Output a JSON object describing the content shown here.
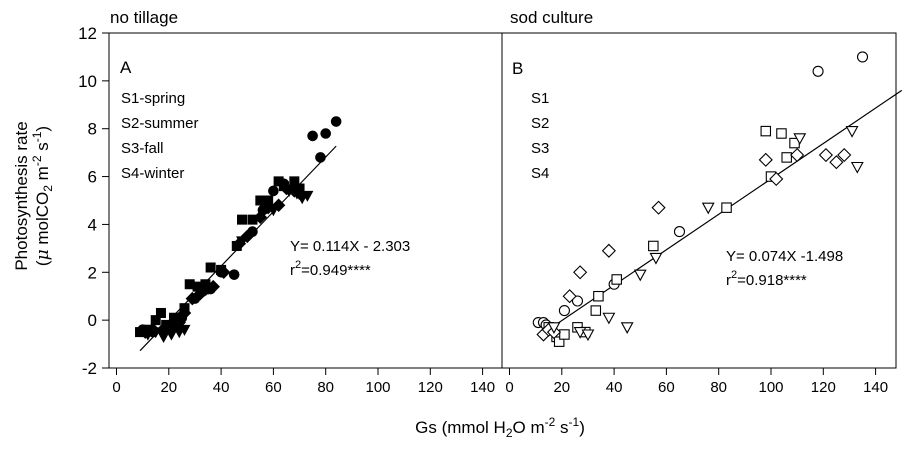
{
  "y_axis": {
    "label_line1": "Photosynthesis rate",
    "label_line2_prefix": "(",
    "label_mu": "μ",
    "label_line2_main": " molCO",
    "label_sub2": "2",
    "label_m": " m",
    "label_sup_m": "-2",
    "label_s": " s",
    "label_sup_s": "-1",
    "label_close": ")"
  },
  "x_axis": {
    "label_prefix": "Gs (mmol H",
    "label_sub": "2",
    "label_mid": "O m",
    "label_sup1": "-2",
    "label_mid2": " s",
    "label_sup2": "-1",
    "label_close": ")"
  },
  "colors": {
    "ink": "#000000",
    "panel_a_fill": "#000000",
    "panel_b_fill": "#ffffff"
  },
  "chart_data": [
    {
      "type": "scatter",
      "title": "no tillage",
      "panel_letter": "A",
      "xlim": [
        0,
        150
      ],
      "ylim": [
        -2,
        12
      ],
      "x_ticks": [
        0,
        20,
        40,
        60,
        80,
        100,
        120,
        140
      ],
      "y_ticks": [
        -2,
        0,
        2,
        4,
        6,
        8,
        10,
        12
      ],
      "legend_items": [
        "S1-spring",
        "S2-summer",
        "S3-fall",
        "S4-winter"
      ],
      "regression": {
        "slope": 0.114,
        "intercept": -2.303,
        "x_range": [
          9,
          84
        ]
      },
      "equation_text": "Y= 0.114X - 2.303",
      "r2_prefix": "r",
      "r2_sup": "2",
      "r2_value": "=0.949****",
      "marker_style": "filled",
      "series": [
        {
          "marker": "circle",
          "points": [
            [
              10,
              -0.4
            ],
            [
              14,
              -0.5
            ],
            [
              18,
              -0.4
            ],
            [
              22,
              -0.2
            ],
            [
              25,
              0.1
            ],
            [
              30,
              0.9
            ],
            [
              33,
              1.2
            ],
            [
              36,
              1.3
            ],
            [
              40,
              2.0
            ],
            [
              45,
              1.9
            ],
            [
              52,
              3.7
            ],
            [
              56,
              4.6
            ],
            [
              60,
              5.4
            ],
            [
              64,
              5.7
            ],
            [
              75,
              7.7
            ],
            [
              78,
              6.8
            ],
            [
              80,
              7.8
            ],
            [
              84,
              8.3
            ]
          ]
        },
        {
          "marker": "square",
          "points": [
            [
              9,
              -0.5
            ],
            [
              12,
              -0.4
            ],
            [
              15,
              0.0
            ],
            [
              17,
              0.3
            ],
            [
              19,
              -0.2
            ],
            [
              22,
              0.1
            ],
            [
              26,
              0.5
            ],
            [
              28,
              1.5
            ],
            [
              31,
              1.4
            ],
            [
              34,
              1.5
            ],
            [
              36,
              2.2
            ],
            [
              40,
              2.1
            ],
            [
              46,
              3.1
            ],
            [
              48,
              4.2
            ],
            [
              52,
              4.2
            ],
            [
              55,
              5.0
            ],
            [
              58,
              5.0
            ],
            [
              62,
              5.8
            ],
            [
              64,
              5.6
            ],
            [
              68,
              5.8
            ],
            [
              70,
              5.5
            ]
          ]
        },
        {
          "marker": "diamond",
          "points": [
            [
              11,
              -0.5
            ],
            [
              14,
              -0.4
            ],
            [
              18,
              -0.5
            ],
            [
              21,
              -0.3
            ],
            [
              24,
              -0.1
            ],
            [
              26,
              0.3
            ],
            [
              29,
              0.9
            ],
            [
              32,
              1.1
            ],
            [
              37,
              1.4
            ],
            [
              41,
              2.0
            ],
            [
              47,
              3.2
            ],
            [
              50,
              3.5
            ],
            [
              55,
              4.3
            ],
            [
              58,
              4.7
            ],
            [
              62,
              4.8
            ],
            [
              65,
              5.5
            ],
            [
              68,
              5.4
            ],
            [
              70,
              5.3
            ]
          ]
        },
        {
          "marker": "triangle-down",
          "points": [
            [
              12,
              -0.6
            ],
            [
              15,
              -0.5
            ],
            [
              18,
              -0.7
            ],
            [
              21,
              -0.6
            ],
            [
              24,
              -0.5
            ],
            [
              26,
              -0.4
            ],
            [
              35,
              1.3
            ],
            [
              48,
              3.3
            ],
            [
              60,
              4.6
            ],
            [
              66,
              5.4
            ],
            [
              69,
              5.3
            ],
            [
              71,
              5.1
            ],
            [
              73,
              5.2
            ]
          ]
        }
      ]
    },
    {
      "type": "scatter",
      "title": "sod culture",
      "panel_letter": "B",
      "xlim": [
        0,
        150
      ],
      "ylim": [
        -2,
        12
      ],
      "x_ticks": [
        0,
        20,
        40,
        60,
        80,
        100,
        120,
        140
      ],
      "y_ticks": [],
      "legend_items": [
        "S1",
        "S2",
        "S3",
        "S4"
      ],
      "regression": {
        "slope": 0.074,
        "intercept": -1.498,
        "x_range": [
          12,
          150
        ]
      },
      "equation_text": "Y= 0.074X -1.498",
      "r2_prefix": "r",
      "r2_sup": "2",
      "r2_value": "=0.918****",
      "marker_style": "open",
      "series": [
        {
          "marker": "circle",
          "points": [
            [
              11,
              -0.1
            ],
            [
              13,
              -0.1
            ],
            [
              14,
              -0.2
            ],
            [
              21,
              0.4
            ],
            [
              26,
              0.8
            ],
            [
              40,
              1.5
            ],
            [
              65,
              3.7
            ],
            [
              118,
              10.4
            ],
            [
              135,
              11.0
            ]
          ]
        },
        {
          "marker": "square",
          "points": [
            [
              15,
              -0.3
            ],
            [
              18,
              -0.7
            ],
            [
              19,
              -0.9
            ],
            [
              21,
              -0.6
            ],
            [
              26,
              -0.3
            ],
            [
              29,
              -0.5
            ],
            [
              33,
              0.4
            ],
            [
              34,
              1.0
            ],
            [
              41,
              1.7
            ],
            [
              55,
              3.1
            ],
            [
              83,
              4.7
            ],
            [
              98,
              7.9
            ],
            [
              100,
              6.0
            ],
            [
              104,
              7.8
            ],
            [
              106,
              6.8
            ],
            [
              109,
              7.4
            ]
          ]
        },
        {
          "marker": "diamond",
          "points": [
            [
              13,
              -0.6
            ],
            [
              15,
              -0.4
            ],
            [
              17,
              -0.5
            ],
            [
              23,
              1.0
            ],
            [
              27,
              2.0
            ],
            [
              38,
              2.9
            ],
            [
              57,
              4.7
            ],
            [
              98,
              6.7
            ],
            [
              102,
              5.9
            ],
            [
              110,
              6.9
            ],
            [
              121,
              6.9
            ],
            [
              125,
              6.6
            ],
            [
              128,
              6.9
            ]
          ]
        },
        {
          "marker": "triangle-down",
          "points": [
            [
              17,
              -0.3
            ],
            [
              27,
              -0.5
            ],
            [
              30,
              -0.6
            ],
            [
              38,
              0.1
            ],
            [
              45,
              -0.3
            ],
            [
              50,
              1.9
            ],
            [
              56,
              2.6
            ],
            [
              76,
              4.7
            ],
            [
              111,
              7.6
            ],
            [
              131,
              7.9
            ],
            [
              133,
              6.4
            ]
          ]
        }
      ]
    }
  ]
}
